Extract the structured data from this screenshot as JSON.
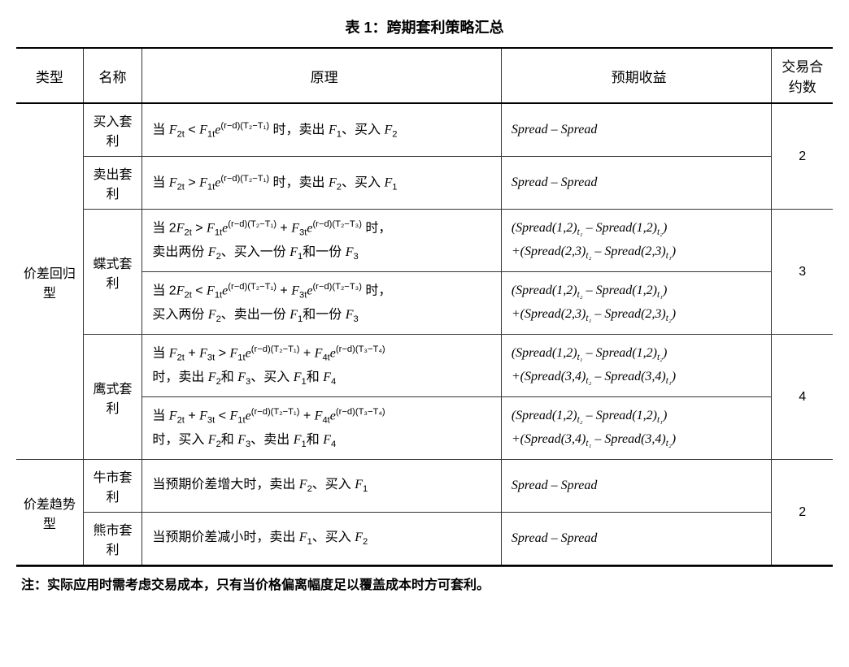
{
  "title": "表 1：跨期套利策略汇总",
  "headers": {
    "type": "类型",
    "name": "名称",
    "principle": "原理",
    "return": "预期收益",
    "count": "交易合约数"
  },
  "types": {
    "regression": "价差回归型",
    "trend": "价差趋势型"
  },
  "rows": {
    "buy": {
      "name": "买入套利",
      "principle": "当 F₂ₜ < F₁ₜe^(r-d)(T₂-T₁) 时，卖出 F₁、买入 F₂",
      "return": "Spread – Spread"
    },
    "sell": {
      "name": "卖出套利",
      "principle": "当 F₂ₜ > F₁ₜe^(r-d)(T₂-T₁) 时，卖出 F₂、买入 F₁",
      "return": "Spread – Spread"
    },
    "butterfly1": {
      "name": "蝶式套利",
      "principle": "当 2F₂ₜ > F₁ₜe^(r-d)(T₂-T₁) + F₃ₜe^(r-d)(T₂-T₃) 时，卖出两份 F₂、买入一份 F₁和一份 F₃",
      "return": "(Spread(1,2)ₜ₁ – Spread(1,2)ₜ₂) + (Spread(2,3)ₜ₂ – Spread(2,3)ₜ₁)"
    },
    "butterfly2": {
      "principle": "当 2F₂ₜ < F₁ₜe^(r-d)(T₂-T₁) + F₃ₜe^(r-d)(T₂-T₃) 时，买入两份 F₂、卖出一份 F₁和一份 F₃",
      "return": "(Spread(1,2)ₜ₂ – Spread(1,2)ₜ₁) + (Spread(2,3)ₜ₁ – Spread(2,3)ₜ₂)"
    },
    "condor1": {
      "name": "鹰式套利",
      "principle": "当 F₂ₜ + F₃ₜ > F₁ₜe^(r-d)(T₂-T₁) + F₄ₜe^(r-d)(T₃-T₄) 时，卖出 F₂和 F₃、买入 F₁和 F₄",
      "return": "(Spread(1,2)ₜ₁ – Spread(1,2)ₜ₂) + (Spread(3,4)ₜ₂ – Spread(3,4)ₜ₁)"
    },
    "condor2": {
      "principle": "当 F₂ₜ + F₃ₜ < F₁ₜe^(r-d)(T₂-T₁) + F₄ₜe^(r-d)(T₃-T₄) 时，买入 F₂和 F₃、卖出 F₁和 F₄",
      "return": "(Spread(1,2)ₜ₂ – Spread(1,2)ₜ₁) + (Spread(3,4)ₜ₁ – Spread(3,4)ₜ₂)"
    },
    "bull": {
      "name": "牛市套利",
      "principle": "当预期价差增大时，卖出 F₂、买入 F₁",
      "return": "Spread – Spread"
    },
    "bear": {
      "name": "熊市套利",
      "principle": "当预期价差减小时，卖出 F₁、买入 F₂",
      "return": "Spread – Spread"
    }
  },
  "counts": {
    "two": "2",
    "three": "3",
    "four": "4"
  },
  "note": "注：实际应用时需考虑交易成本，只有当价格偏离幅度足以覆盖成本时方可套利。"
}
